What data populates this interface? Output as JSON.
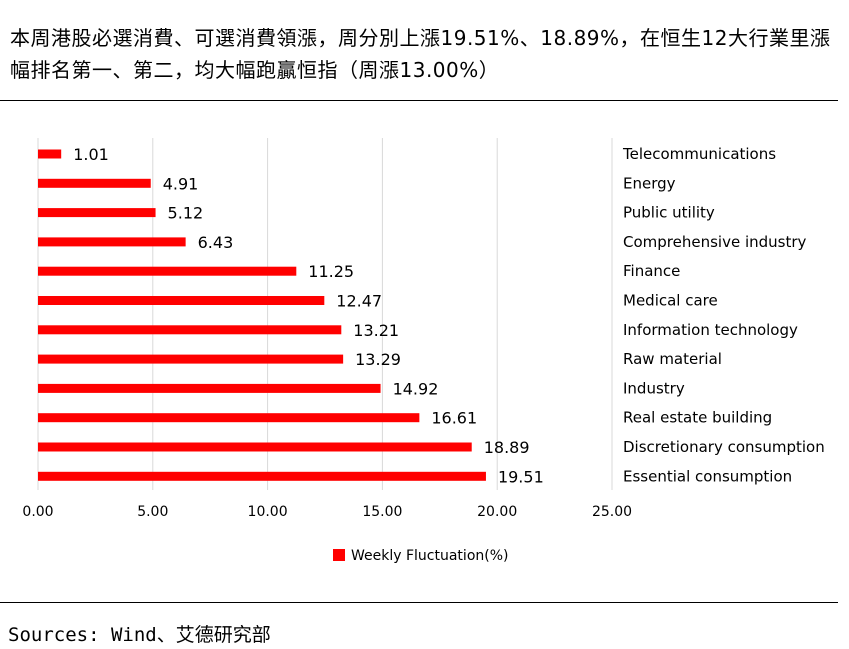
{
  "headline": "本周港股必選消費、可選消費領漲，周分別上漲19.51%、18.89%，在恒生12大行業里漲幅排名第一、第二，均大幅跑贏恒指（周漲13.00%）",
  "source": "Sources: Wind、艾德研究部",
  "chart_data": {
    "type": "bar",
    "orientation": "horizontal",
    "categories": [
      "Telecommunications",
      "Energy",
      "Public utility",
      "Comprehensive industry",
      "Finance",
      "Medical care",
      "Information technology",
      "Raw material",
      "Industry",
      "Real estate building",
      "Discretionary consumption",
      "Essential consumption"
    ],
    "values": [
      1.01,
      4.91,
      5.12,
      6.43,
      11.25,
      12.47,
      13.21,
      13.29,
      14.92,
      16.61,
      18.89,
      19.51
    ],
    "value_labels": [
      "1.01",
      "4.91",
      "5.12",
      "6.43",
      "11.25",
      "12.47",
      "13.21",
      "13.29",
      "14.92",
      "16.61",
      "18.89",
      "19.51"
    ],
    "series": [
      {
        "name": "Weekly Fluctuation(%)",
        "color": "#ff0000"
      }
    ],
    "xlim": [
      0,
      25
    ],
    "x_ticks": [
      "0.00",
      "5.00",
      "10.00",
      "15.00",
      "20.00",
      "25.00"
    ],
    "grid": "vertical",
    "legend": "bottom"
  }
}
